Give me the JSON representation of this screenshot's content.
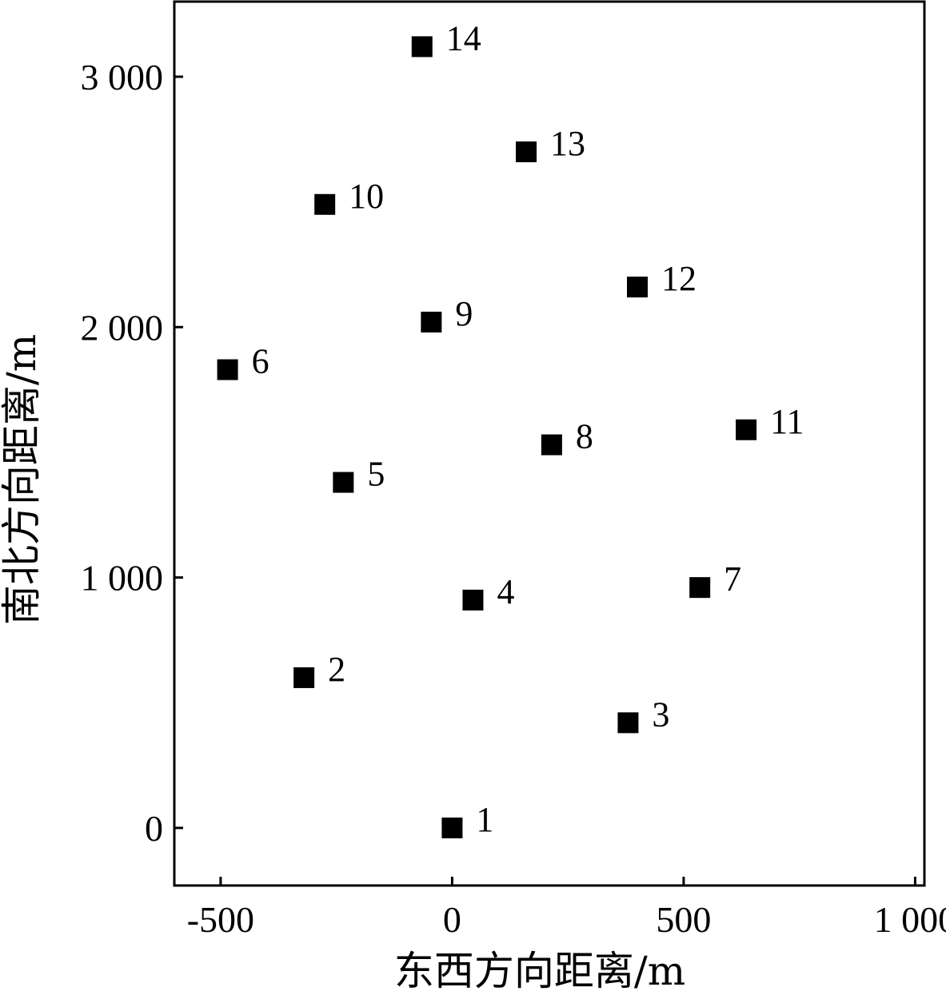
{
  "chart_data": {
    "type": "scatter",
    "title": "",
    "xlabel": "东西方向距离/m",
    "ylabel": "南北方向距离/m",
    "xlim": [
      -600,
      1020
    ],
    "ylim": [
      -230,
      3300
    ],
    "x_ticks": [
      {
        "value": -500,
        "label": "-500"
      },
      {
        "value": 0,
        "label": "0"
      },
      {
        "value": 500,
        "label": "500"
      },
      {
        "value": 1000,
        "label": "1 000"
      }
    ],
    "y_ticks": [
      {
        "value": 0,
        "label": "0"
      },
      {
        "value": 1000,
        "label": "1 000"
      },
      {
        "value": 2000,
        "label": "2 000"
      },
      {
        "value": 3000,
        "label": "3 000"
      }
    ],
    "grid": false,
    "marker": "square",
    "marker_color": "#000000",
    "points": [
      {
        "label": "1",
        "x": 0,
        "y": 0
      },
      {
        "label": "2",
        "x": -320,
        "y": 600
      },
      {
        "label": "3",
        "x": 380,
        "y": 420
      },
      {
        "label": "4",
        "x": 45,
        "y": 910
      },
      {
        "label": "5",
        "x": -235,
        "y": 1380
      },
      {
        "label": "6",
        "x": -485,
        "y": 1830
      },
      {
        "label": "7",
        "x": 535,
        "y": 960
      },
      {
        "label": "8",
        "x": 215,
        "y": 1530
      },
      {
        "label": "9",
        "x": -45,
        "y": 2020
      },
      {
        "label": "10",
        "x": -275,
        "y": 2490
      },
      {
        "label": "11",
        "x": 635,
        "y": 1590
      },
      {
        "label": "12",
        "x": 400,
        "y": 2160
      },
      {
        "label": "13",
        "x": 160,
        "y": 2700
      },
      {
        "label": "14",
        "x": -65,
        "y": 3120
      }
    ]
  }
}
